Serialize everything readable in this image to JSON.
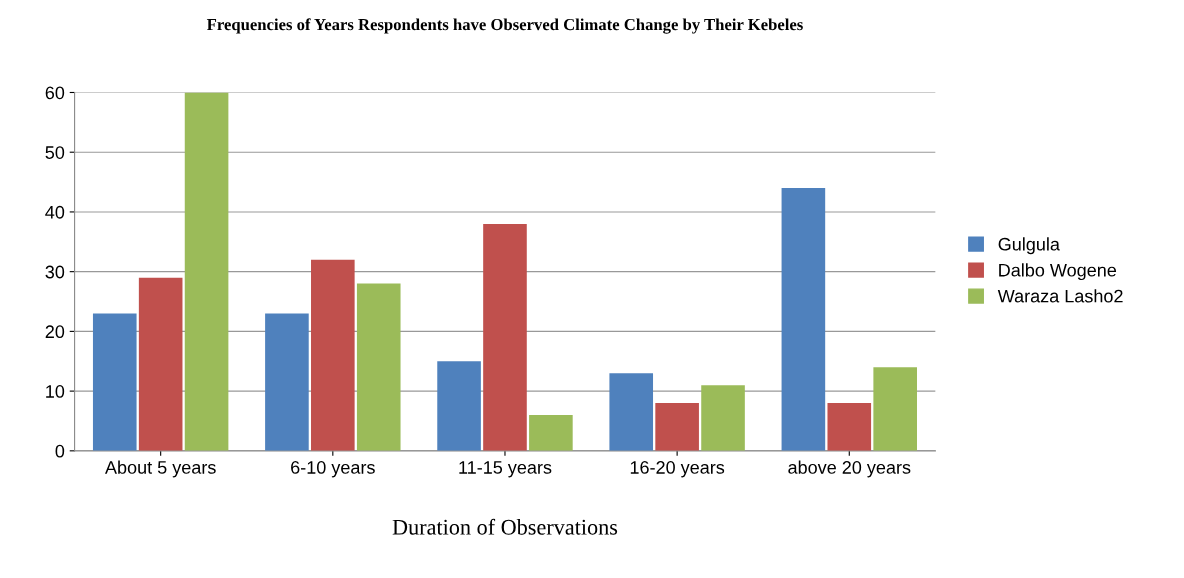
{
  "chart_data": {
    "type": "bar",
    "title": "Frequencies of Years Respondents have Observed Climate Change by Their Kebeles",
    "xlabel": "Duration of Observations",
    "categories": [
      "About 5 years",
      "6-10 years",
      "11-15 years",
      "16-20 years",
      "above 20 years"
    ],
    "series": [
      {
        "name": "Gulgula",
        "color": "#4f81bd",
        "values": [
          23,
          23,
          15,
          13,
          44
        ]
      },
      {
        "name": "Dalbo Wogene",
        "color": "#c0504d",
        "values": [
          29,
          32,
          38,
          8,
          8
        ]
      },
      {
        "name": "Waraza Lasho2",
        "color": "#9bbb59",
        "values": [
          60,
          28,
          6,
          11,
          14
        ]
      }
    ],
    "ylim": [
      0,
      60
    ],
    "yticks": [
      0,
      10,
      20,
      30,
      40,
      50,
      60
    ],
    "grid": "y",
    "legend": "right"
  }
}
